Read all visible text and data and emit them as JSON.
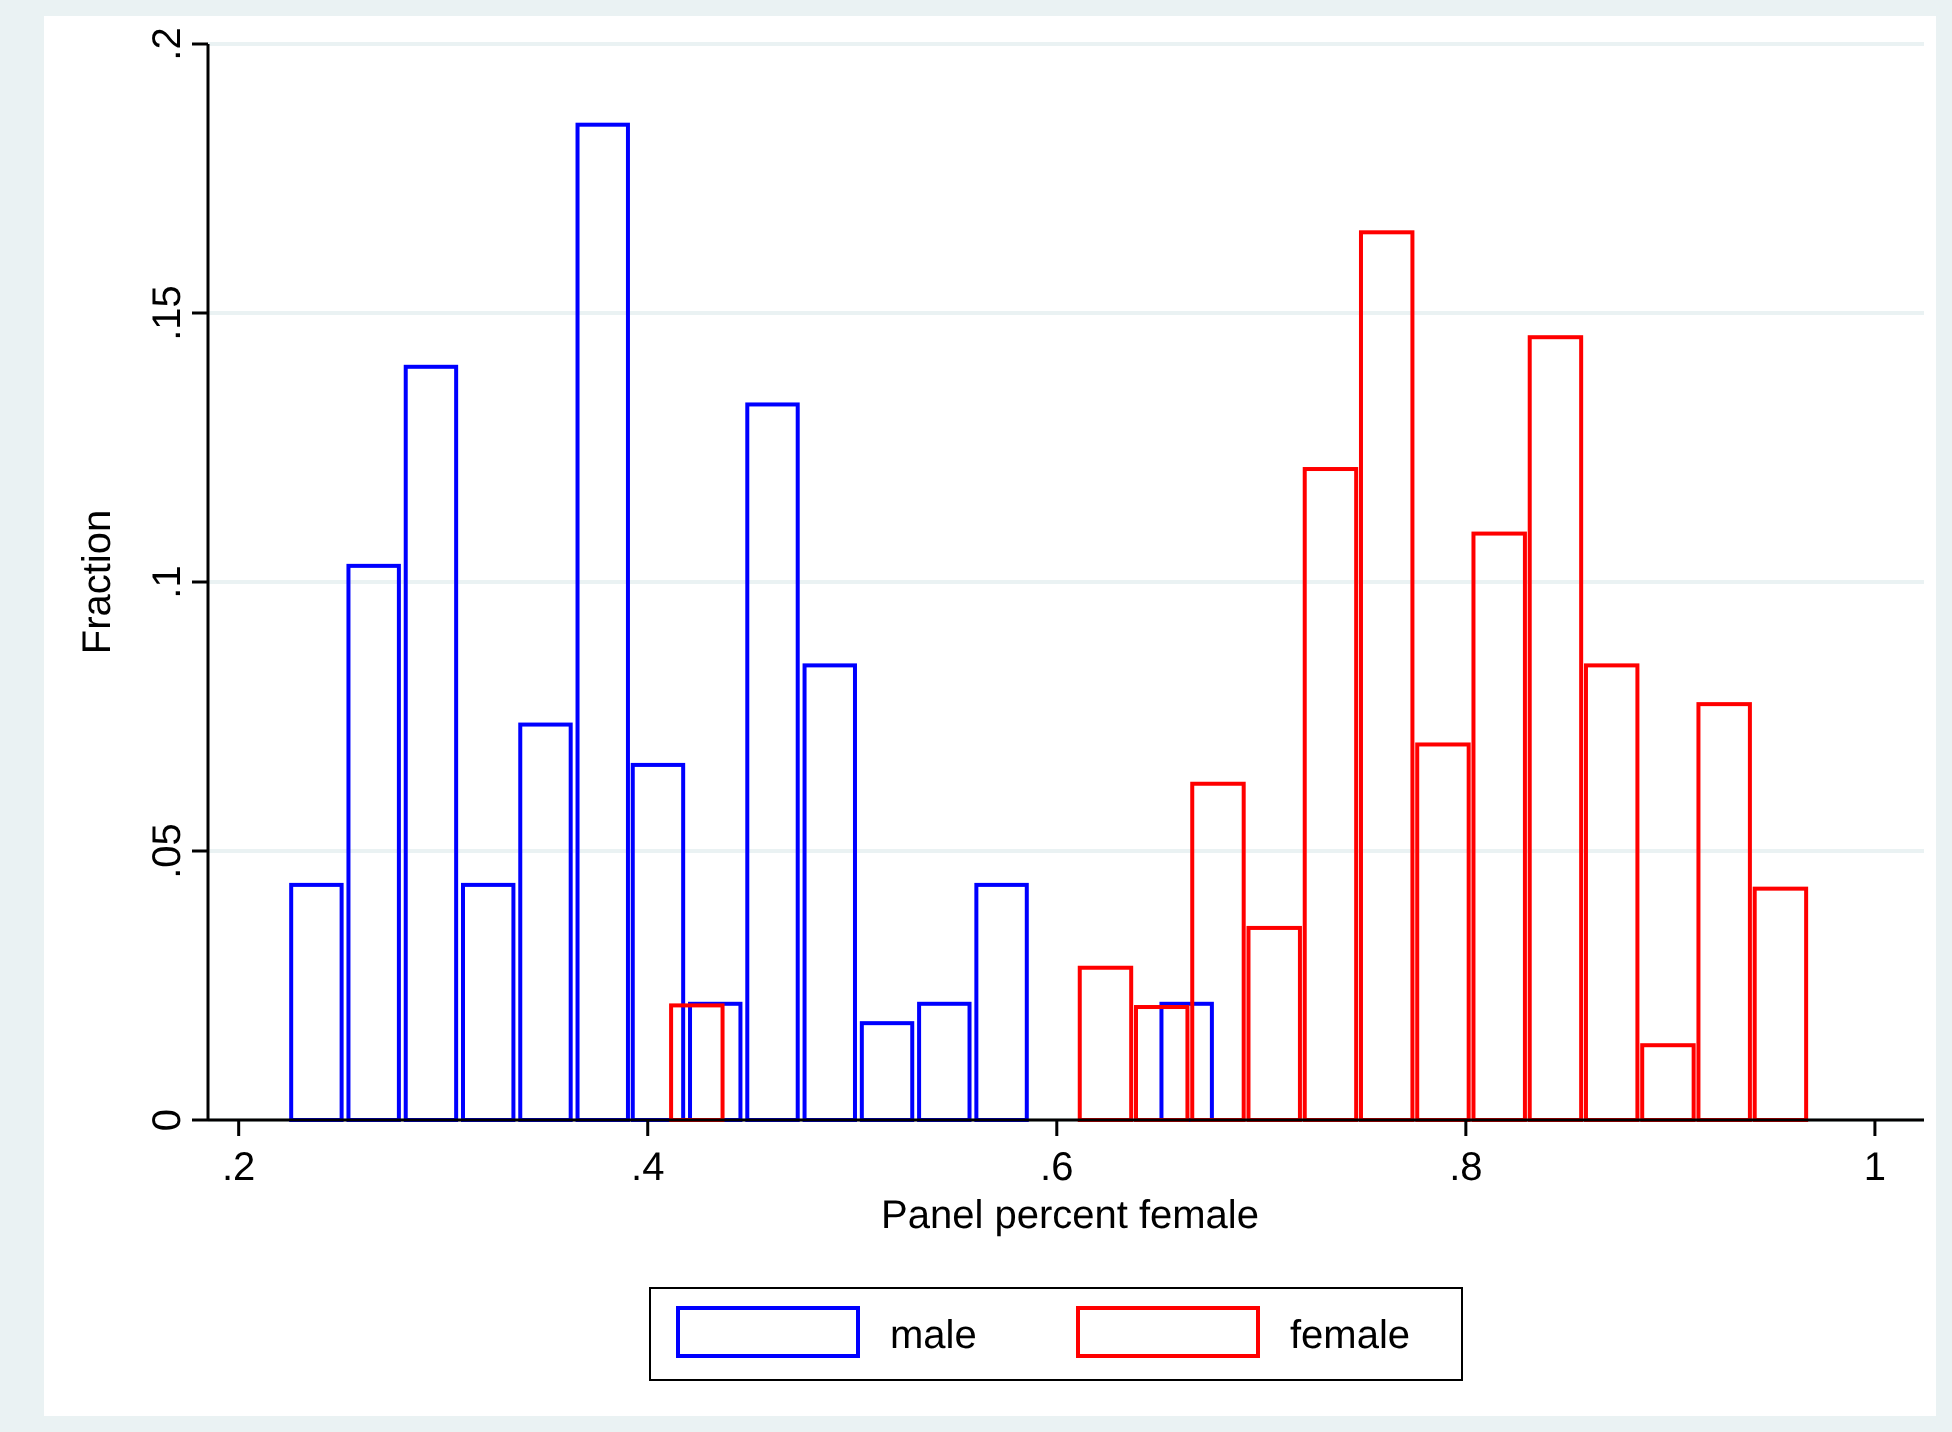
{
  "chart_data": {
    "type": "bar",
    "xlabel": "Panel percent female",
    "ylabel": "Fraction",
    "series": [
      {
        "name": "male",
        "color": "#0000ff",
        "x": [
          0.238,
          0.266,
          0.294,
          0.322,
          0.35,
          0.378,
          0.405,
          0.433,
          0.461,
          0.489,
          0.517,
          0.545,
          0.573,
          0.6635
        ],
        "values": [
          0.0437,
          0.103,
          0.14,
          0.0437,
          0.0735,
          0.185,
          0.066,
          0.0216,
          0.133,
          0.0845,
          0.018,
          0.0216,
          0.0437,
          0.0216
        ]
      },
      {
        "name": "female",
        "color": "#ff0000",
        "x": [
          0.424,
          0.6238,
          0.6513,
          0.6788,
          0.7063,
          0.7338,
          0.7613,
          0.7888,
          0.8163,
          0.8438,
          0.8713,
          0.8988,
          0.9263,
          0.9538
        ],
        "values": [
          0.0213,
          0.0283,
          0.021,
          0.0625,
          0.0357,
          0.121,
          0.165,
          0.0698,
          0.109,
          0.1455,
          0.0845,
          0.0139,
          0.0773,
          0.043
        ]
      }
    ],
    "xlim": [
      0.185,
      1.024
    ],
    "xticks": [
      {
        "value": 0.2,
        "label": ".2"
      },
      {
        "value": 0.4,
        "label": ".4"
      },
      {
        "value": 0.6,
        "label": ".6"
      },
      {
        "value": 0.8,
        "label": ".8"
      },
      1
    ],
    "ylim": [
      0,
      0.2
    ],
    "yticks": [
      0,
      {
        "value": 0.05,
        "label": ".05"
      },
      {
        "value": 0.1,
        "label": ".1"
      },
      {
        "value": 0.15,
        "label": ".15"
      },
      {
        "value": 0.2,
        "label": ".2"
      }
    ],
    "grid": "y",
    "legend": "bottom"
  }
}
